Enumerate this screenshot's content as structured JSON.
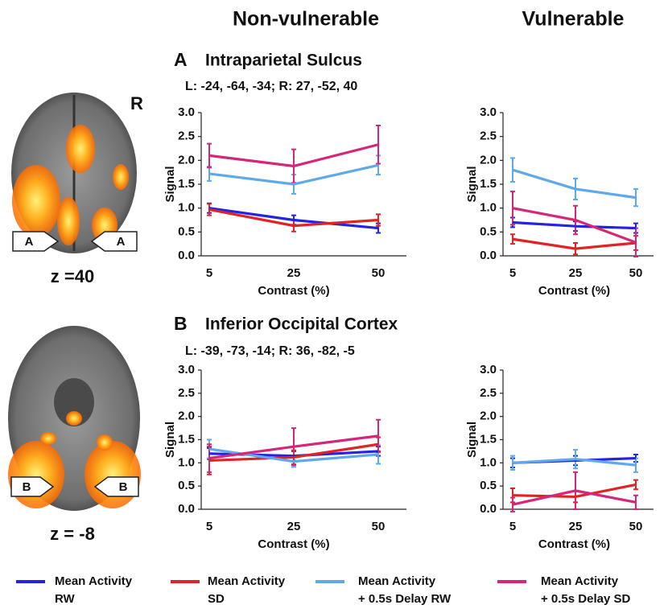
{
  "column_titles": [
    "Non-vulnerable",
    "Vulnerable"
  ],
  "panels": [
    {
      "letter": "A",
      "region": "Intraparietal Sulcus",
      "coordinates": "L: -24, -64, -34; R: 27, -52, 40",
      "hemisphere_label": "R",
      "arrow_label": "A",
      "slice": "z =40"
    },
    {
      "letter": "B",
      "region": "Inferior Occipital Cortex",
      "coordinates": "L: -39, -73, -14; R: 36, -82, -5",
      "arrow_label": "B",
      "slice": "z = -8"
    }
  ],
  "legend": [
    {
      "lines": [
        "Mean Activity",
        "RW"
      ],
      "color": "#2323e6"
    },
    {
      "lines": [
        "Mean Activity",
        "SD"
      ],
      "color": "#e02424"
    },
    {
      "lines": [
        "Mean Activity",
        "+ 0.5s Delay RW"
      ],
      "color": "#5ea9ec"
    },
    {
      "lines": [
        "Mean Activity",
        "+ 0.5s Delay SD"
      ],
      "color": "#d62679"
    }
  ],
  "chart_data": [
    {
      "type": "line",
      "categories": [
        "5",
        "25",
        "50"
      ],
      "xlabel": "Contrast (%)",
      "ylabel": "Signal",
      "ylim": [
        0,
        3
      ],
      "yticks": [
        {
          "value": 0,
          "label": "0.0"
        },
        0.5,
        {
          "value": 1,
          "label": "1.0"
        },
        1.5,
        {
          "value": 2,
          "label": "2.0"
        },
        2.5,
        {
          "value": 3,
          "label": "3.0"
        }
      ],
      "series": [
        {
          "values": [
            1.0,
            0.75,
            0.58
          ],
          "errors": [
            0.1,
            0.1,
            0.1
          ]
        },
        {
          "values": [
            0.97,
            0.63,
            0.75
          ],
          "errors": [
            0.12,
            0.12,
            0.12
          ]
        },
        {
          "values": [
            1.72,
            1.5,
            1.9
          ],
          "errors": [
            0.15,
            0.2,
            0.2
          ]
        },
        {
          "values": [
            2.1,
            1.88,
            2.33
          ],
          "errors": [
            0.25,
            0.35,
            0.4
          ]
        }
      ]
    },
    {
      "type": "line",
      "categories": [
        "5",
        "25",
        "50"
      ],
      "xlabel": "Contrast (%)",
      "ylabel": "Signal",
      "ylim": [
        0,
        3
      ],
      "yticks": [
        {
          "value": 0,
          "label": "0.0"
        },
        0.5,
        {
          "value": 1,
          "label": "1.0"
        },
        1.5,
        {
          "value": 2,
          "label": "2.0"
        },
        2.5,
        {
          "value": 3,
          "label": "3.0"
        }
      ],
      "series": [
        {
          "values": [
            0.7,
            0.62,
            0.58
          ],
          "errors": [
            0.1,
            0.1,
            0.1
          ]
        },
        {
          "values": [
            0.35,
            0.15,
            0.27
          ],
          "errors": [
            0.1,
            0.12,
            0.15
          ]
        },
        {
          "values": [
            1.8,
            1.4,
            1.22
          ],
          "errors": [
            0.25,
            0.22,
            0.18
          ]
        },
        {
          "values": [
            1.0,
            0.75,
            0.28
          ],
          "errors": [
            0.35,
            0.3,
            0.3
          ]
        }
      ]
    },
    {
      "type": "line",
      "categories": [
        "5",
        "25",
        "50"
      ],
      "xlabel": "Contrast (%)",
      "ylabel": "Signal",
      "ylim": [
        0,
        3
      ],
      "yticks": [
        {
          "value": 0,
          "label": "0.0"
        },
        0.5,
        {
          "value": 1,
          "label": "1.0"
        },
        1.5,
        {
          "value": 2,
          "label": "2.0"
        },
        2.5,
        {
          "value": 3,
          "label": "3.0"
        }
      ],
      "series": [
        {
          "values": [
            1.2,
            1.15,
            1.25
          ],
          "errors": [
            0.12,
            0.1,
            0.1
          ]
        },
        {
          "values": [
            1.05,
            1.12,
            1.4
          ],
          "errors": [
            0.3,
            0.15,
            0.15
          ]
        },
        {
          "values": [
            1.3,
            1.03,
            1.18
          ],
          "errors": [
            0.2,
            0.12,
            0.2
          ]
        },
        {
          "values": [
            1.1,
            1.35,
            1.58
          ],
          "errors": [
            0.3,
            0.4,
            0.35
          ]
        }
      ]
    },
    {
      "type": "line",
      "categories": [
        "5",
        "25",
        "50"
      ],
      "xlabel": "Contrast (%)",
      "ylabel": "Signal",
      "ylim": [
        0,
        3
      ],
      "yticks": [
        {
          "value": 0,
          "label": "0.0"
        },
        0.5,
        {
          "value": 1,
          "label": "1.0"
        },
        1.5,
        {
          "value": 2,
          "label": "2.0"
        },
        2.5,
        {
          "value": 3,
          "label": "3.0"
        }
      ],
      "series": [
        {
          "values": [
            1.0,
            1.05,
            1.1
          ],
          "errors": [
            0.1,
            0.1,
            0.08
          ]
        },
        {
          "values": [
            0.3,
            0.27,
            0.53
          ],
          "errors": [
            0.15,
            0.12,
            0.1
          ]
        },
        {
          "values": [
            1.0,
            1.08,
            0.95
          ],
          "errors": [
            0.15,
            0.2,
            0.15
          ]
        },
        {
          "values": [
            0.1,
            0.4,
            0.15
          ],
          "errors": [
            0.15,
            0.4,
            0.15
          ]
        }
      ]
    }
  ]
}
